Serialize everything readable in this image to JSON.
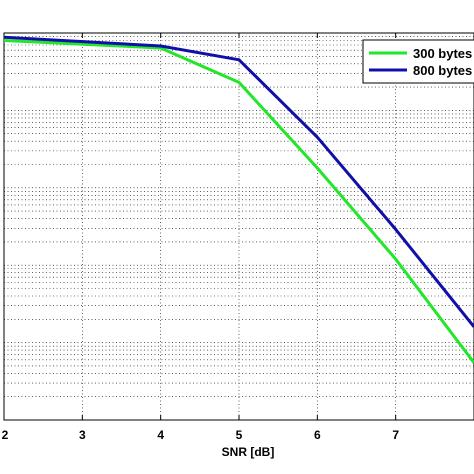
{
  "chart_data": {
    "type": "line",
    "xlabel": "SNR [dB]",
    "ylabel": "",
    "xscale": "linear",
    "yscale": "log",
    "xlim": [
      2,
      8
    ],
    "ylim": [
      1e-05,
      1
    ],
    "x_ticks": [
      "2",
      "3",
      "4",
      "5",
      "6",
      "7"
    ],
    "grid": true,
    "legend_position": "top-right",
    "series": [
      {
        "name": "300 bytes",
        "color": "#22e62a",
        "x": [
          2,
          4,
          5,
          6,
          7,
          8
        ],
        "y": [
          0.8,
          0.64,
          0.23,
          0.018,
          0.0012,
          5.5e-05
        ]
      },
      {
        "name": "800 bytes",
        "color": "#1010a8",
        "x": [
          2,
          4,
          5,
          6,
          7,
          8
        ],
        "y": [
          0.88,
          0.68,
          0.45,
          0.045,
          0.0029,
          0.00016
        ]
      }
    ]
  }
}
